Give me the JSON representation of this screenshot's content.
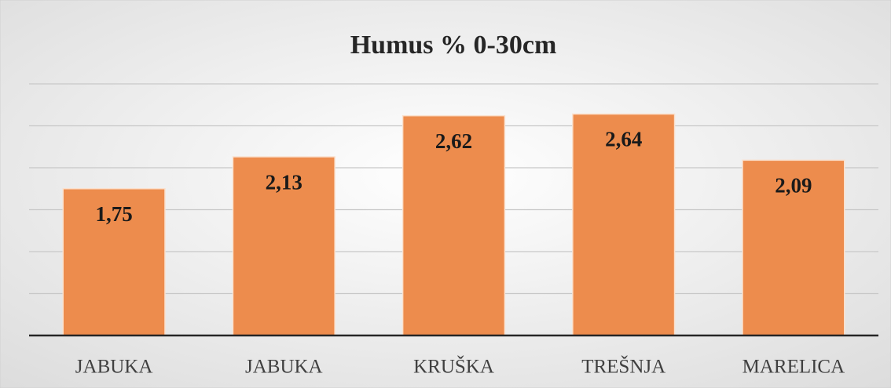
{
  "chart_data": {
    "type": "bar",
    "title": "Humus % 0-30cm",
    "categories": [
      "JABUKA",
      "JABUKA",
      "KRUŠKA",
      "TREŠNJA",
      "MARELICA"
    ],
    "values": [
      1.75,
      2.13,
      2.62,
      2.64,
      2.09
    ],
    "value_labels": [
      "1,75",
      "2,13",
      "2,62",
      "2,64",
      "2,09"
    ],
    "color": "#ed8c4d",
    "ylim": [
      0,
      3
    ],
    "yticks": [
      0,
      0.5,
      1,
      1.5,
      2,
      2.5,
      3
    ],
    "grid": true
  }
}
